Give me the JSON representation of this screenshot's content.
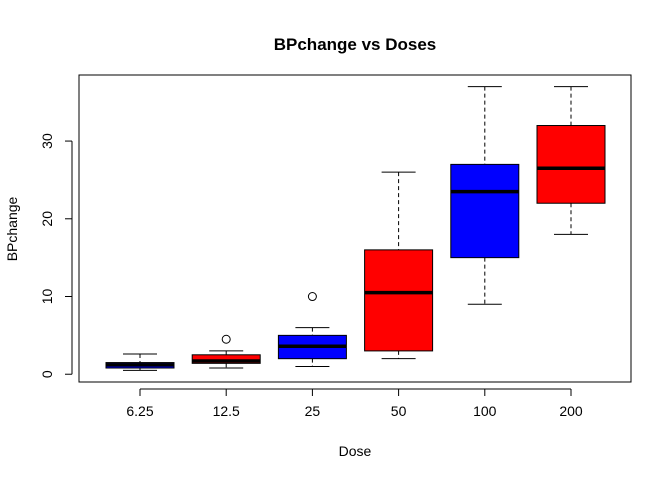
{
  "chart_data": {
    "type": "boxplot",
    "title": "BPchange vs Doses",
    "xlabel": "Dose",
    "ylabel": "BPchange",
    "categories": [
      "6.25",
      "12.5",
      "25",
      "50",
      "100",
      "200"
    ],
    "ylim": [
      -1,
      38.5
    ],
    "yticks": [
      0,
      10,
      20,
      30
    ],
    "grid": false,
    "legend": "none",
    "boxes": [
      {
        "category": "6.25",
        "whisker_low": 0.5,
        "q1": 0.8,
        "median": 1.2,
        "q3": 1.5,
        "whisker_high": 2.6,
        "outliers": [],
        "color": "#0000ff"
      },
      {
        "category": "12.5",
        "whisker_low": 0.8,
        "q1": 1.4,
        "median": 1.7,
        "q3": 2.5,
        "whisker_high": 3.0,
        "outliers": [
          4.5
        ],
        "color": "#ff0000"
      },
      {
        "category": "25",
        "whisker_low": 1.0,
        "q1": 2.0,
        "median": 3.6,
        "q3": 5.0,
        "whisker_high": 6.0,
        "outliers": [
          10
        ],
        "color": "#0000ff"
      },
      {
        "category": "50",
        "whisker_low": 2.0,
        "q1": 3.0,
        "median": 10.5,
        "q3": 16.0,
        "whisker_high": 26.0,
        "outliers": [],
        "color": "#ff0000"
      },
      {
        "category": "100",
        "whisker_low": 9.0,
        "q1": 15.0,
        "median": 23.5,
        "q3": 27.0,
        "whisker_high": 37.0,
        "outliers": [],
        "color": "#0000ff"
      },
      {
        "category": "200",
        "whisker_low": 18.0,
        "q1": 22.0,
        "median": 26.5,
        "q3": 32.0,
        "whisker_high": 37.0,
        "outliers": [],
        "color": "#ff0000"
      }
    ]
  }
}
